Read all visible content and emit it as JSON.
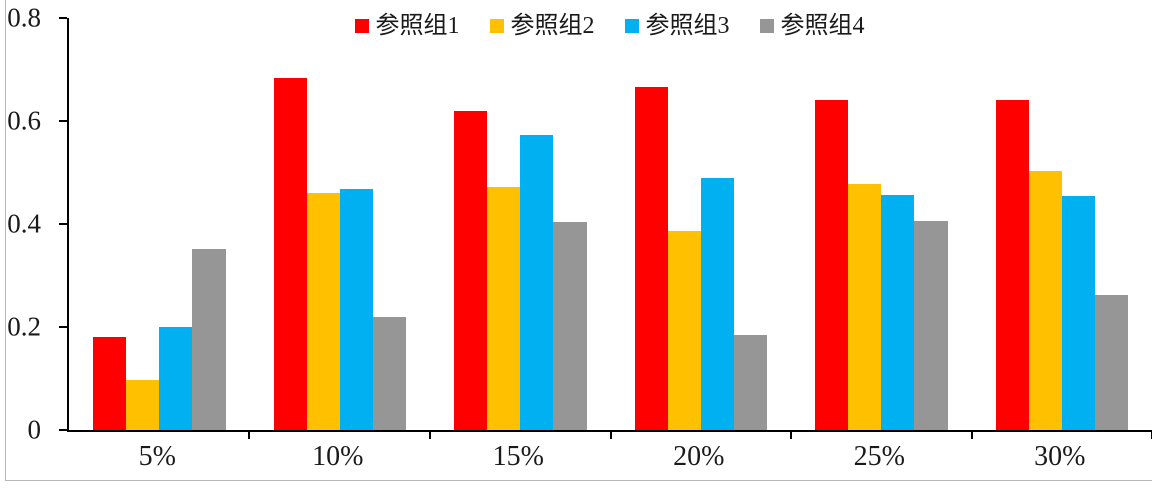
{
  "chart_data": {
    "type": "bar",
    "title": "",
    "xlabel": "",
    "ylabel": "",
    "categories": [
      "5%",
      "10%",
      "15%",
      "20%",
      "25%",
      "30%"
    ],
    "series": [
      {
        "name": "参照组1",
        "color": "#ff0000",
        "values": [
          0.18,
          0.684,
          0.62,
          0.666,
          0.641,
          0.641
        ]
      },
      {
        "name": "参照组2",
        "color": "#ffc000",
        "values": [
          0.098,
          0.461,
          0.471,
          0.387,
          0.478,
          0.502
        ]
      },
      {
        "name": "参照组3",
        "color": "#00b0f0",
        "values": [
          0.201,
          0.468,
          0.573,
          0.49,
          0.456,
          0.454
        ]
      },
      {
        "name": "参照组4",
        "color": "#969696",
        "values": [
          0.352,
          0.22,
          0.403,
          0.185,
          0.406,
          0.262
        ]
      }
    ],
    "ylim": [
      0,
      0.8
    ],
    "yticks": [
      "0",
      "0.2",
      "0.4",
      "0.6",
      "0.8"
    ],
    "grid": false,
    "legend_position": "top-center",
    "axis_color": "#000000"
  }
}
